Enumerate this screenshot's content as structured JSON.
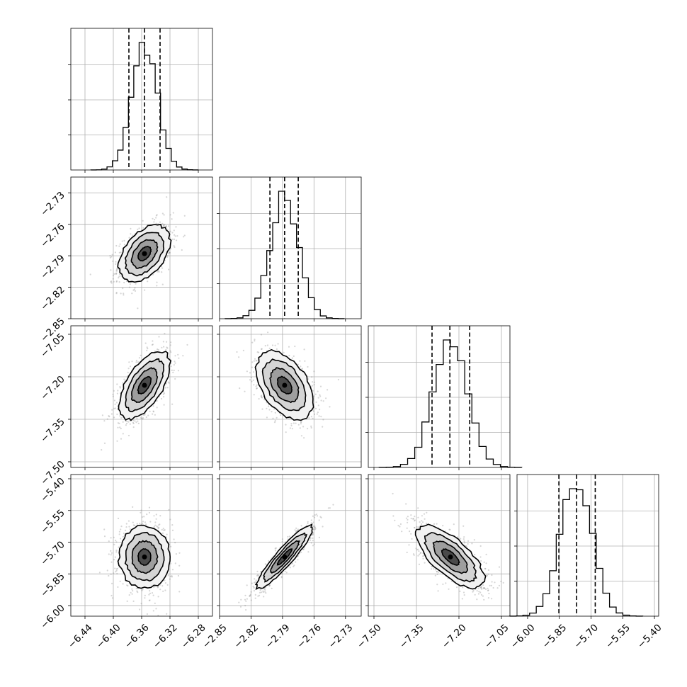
{
  "chart_data": {
    "type": "corner",
    "grid": true,
    "parameters": [
      {
        "axis_range": [
          -6.46,
          -6.26
        ],
        "ticks": [
          "−6.44",
          "−6.40",
          "−6.36",
          "−6.32",
          "−6.28"
        ],
        "tick_values": [
          -6.44,
          -6.4,
          -6.36,
          -6.32,
          -6.28
        ],
        "mean": -6.356,
        "std": 0.018,
        "quantiles": [
          -6.378,
          -6.356,
          -6.334
        ]
      },
      {
        "axis_range": [
          -2.85,
          -2.715
        ],
        "ticks": [
          "−2.85",
          "−2.82",
          "−2.79",
          "−2.76",
          "−2.73"
        ],
        "tick_values": [
          -2.85,
          -2.82,
          -2.79,
          -2.76,
          -2.73
        ],
        "mean": -2.788,
        "std": 0.0135,
        "quantiles": [
          -2.802,
          -2.788,
          -2.775
        ]
      },
      {
        "axis_range": [
          -7.52,
          -7.02
        ],
        "ticks": [
          "−7.50",
          "−7.35",
          "−7.20",
          "−7.05"
        ],
        "tick_values": [
          -7.5,
          -7.35,
          -7.2,
          -7.05
        ],
        "mean": -7.23,
        "std": 0.06,
        "quantiles": [
          -7.295,
          -7.232,
          -7.162
        ]
      },
      {
        "axis_range": [
          -6.05,
          -5.38
        ],
        "ticks": [
          "−6.00",
          "−5.85",
          "−5.70",
          "−5.55",
          "−5.40"
        ],
        "tick_values": [
          -6.0,
          -5.85,
          -5.7,
          -5.55,
          -5.4
        ],
        "mean": -5.77,
        "std": 0.075,
        "quantiles": [
          -5.852,
          -5.768,
          -5.68
        ]
      }
    ],
    "correlations": {
      "1-0": 0.45,
      "2-0": 0.6,
      "2-1": -0.45,
      "3-0": 0.0,
      "3-1": 0.92,
      "3-2": -0.7
    },
    "histogram_bins": 20,
    "contour_levels_sigma": [
      0.5,
      1.0,
      1.5,
      2.0
    ]
  }
}
